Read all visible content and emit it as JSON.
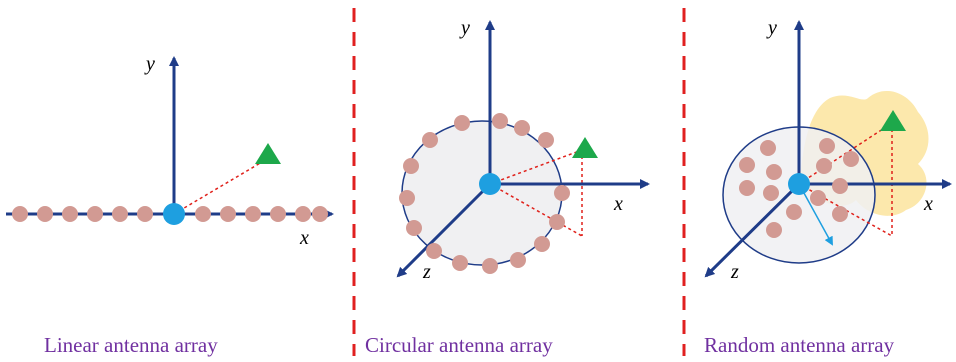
{
  "colors": {
    "axis": "#1F3C88",
    "element": "#D29A93",
    "origin": "#1E9FE0",
    "user_marker": "#1DA84B",
    "link_line": "#E0201A",
    "divider": "#E02020",
    "disc_fill": "#F0F0F2",
    "disc_stroke": "#1F3C88",
    "pattern_fill": "#FCE7A8",
    "radius_arrow": "#1E9FE0",
    "caption_text": "#7030A0"
  },
  "panels": [
    {
      "id": "linear",
      "caption": "Linear antenna array",
      "axes": {
        "x": "x",
        "y": "y"
      }
    },
    {
      "id": "circular",
      "caption": "Circular antenna array",
      "axes": {
        "x": "x",
        "y": "y",
        "z": "z"
      }
    },
    {
      "id": "random",
      "caption": "Random antenna array",
      "axes": {
        "x": "x",
        "y": "y",
        "z": "z"
      }
    }
  ]
}
